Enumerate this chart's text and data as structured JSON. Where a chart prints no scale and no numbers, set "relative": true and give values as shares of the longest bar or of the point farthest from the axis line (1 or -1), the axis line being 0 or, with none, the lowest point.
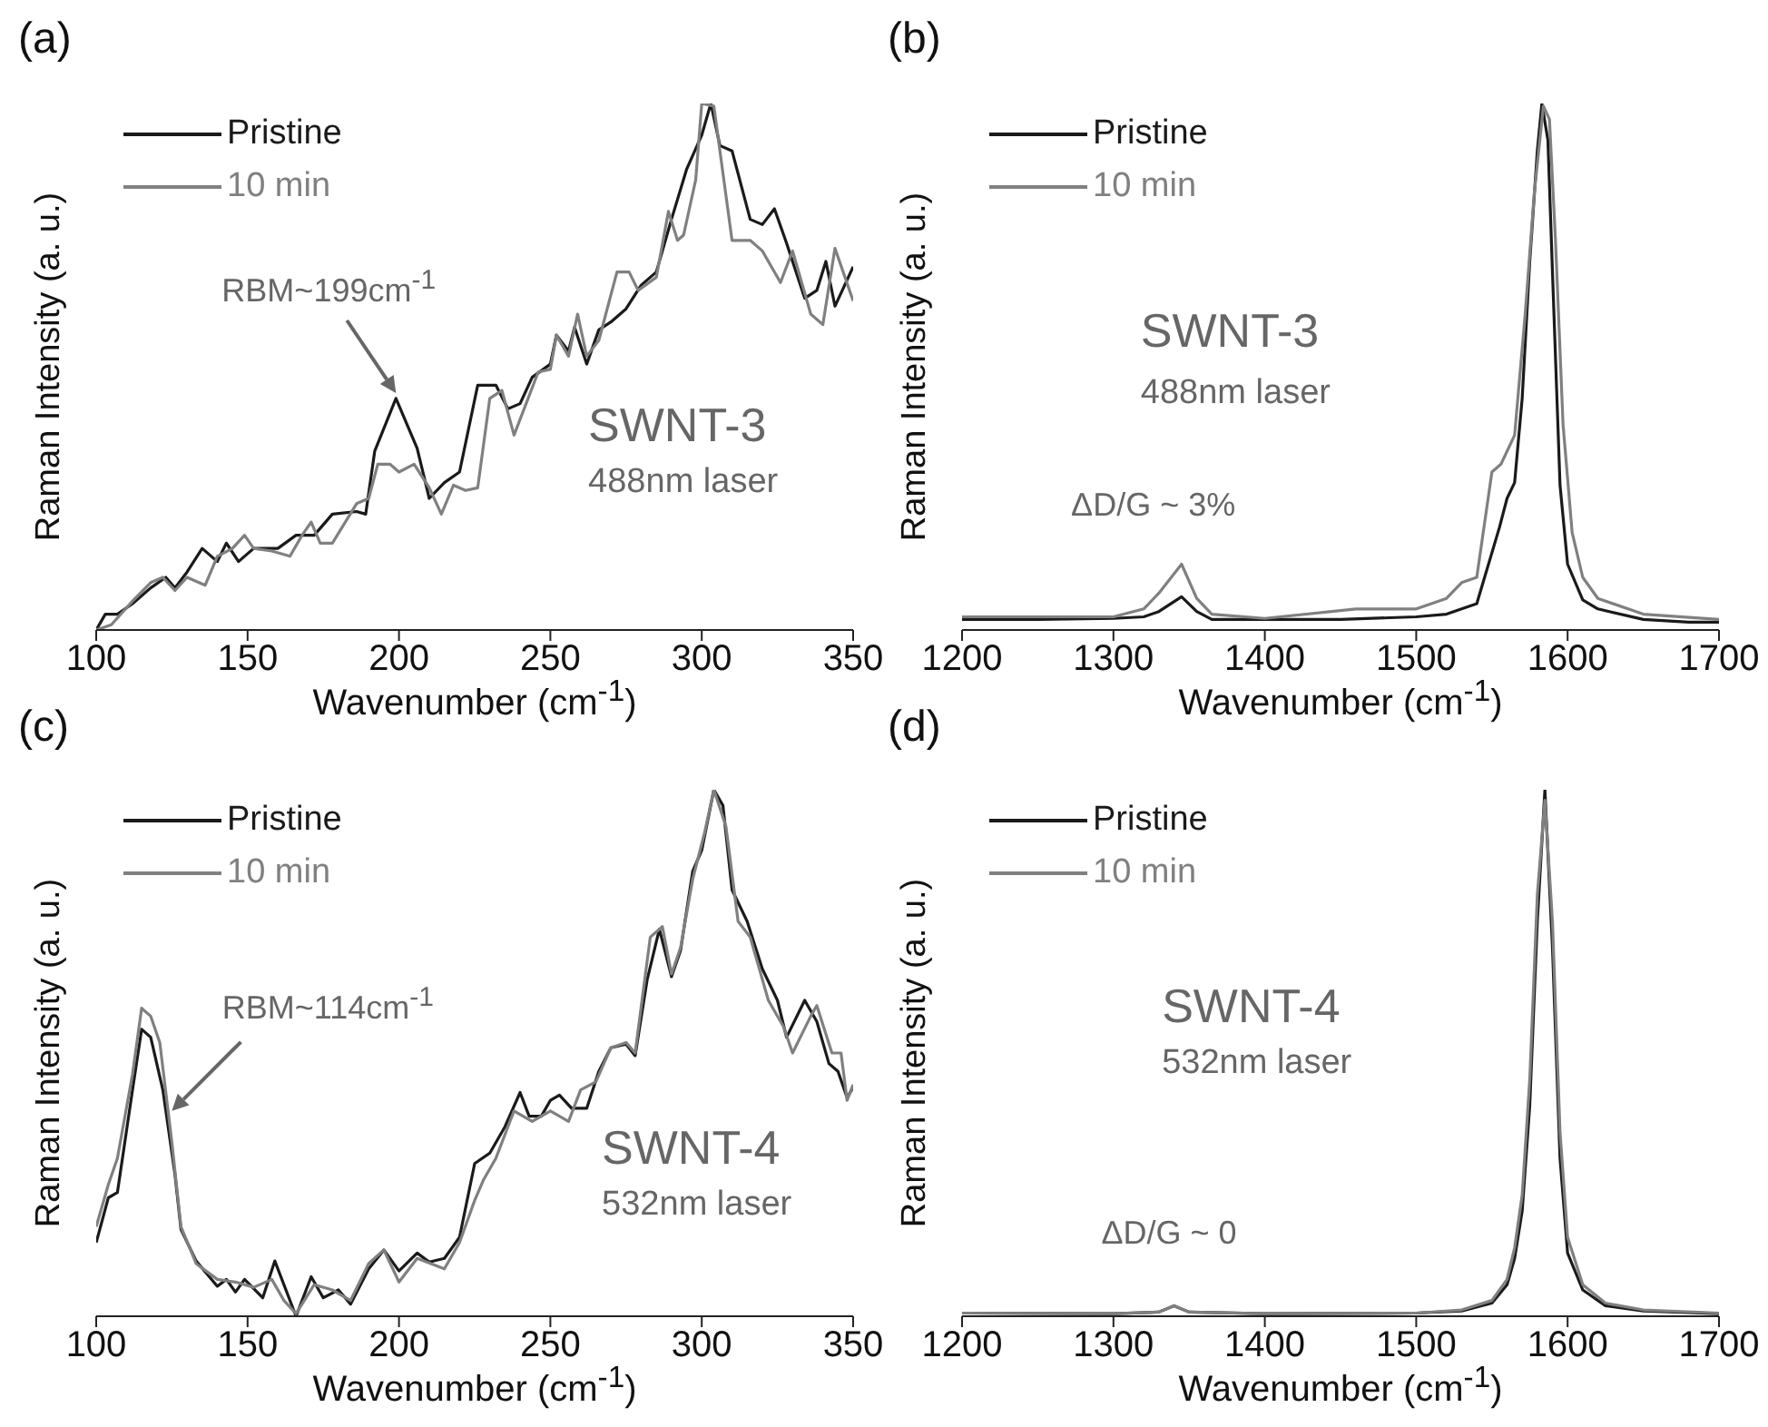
{
  "chart_data": [
    {
      "type": "line",
      "title": "(a)",
      "xlabel": "Wavenumber (cm$^{-1}$)",
      "ylabel": "Raman Intensity (a. u.)",
      "relative": true,
      "legend": "top left",
      "xlim": [
        100,
        350
      ],
      "xticks": [
        100,
        150,
        200,
        250,
        300,
        350
      ],
      "annotations": [
        {
          "text": "RBM~199cm$^{-1}$",
          "x": 199,
          "y": 0.45
        },
        "SWNT-3",
        "488nm laser"
      ],
      "series": [
        {
          "name": "Pristine",
          "color": "#1a1a1a",
          "x": [
            100,
            103,
            107,
            112,
            118,
            123,
            126,
            130,
            135,
            140,
            143,
            147,
            152,
            160,
            166,
            172,
            178,
            186,
            189,
            192,
            199,
            206,
            210,
            215,
            220,
            226,
            232,
            236,
            240,
            244,
            250,
            252,
            256,
            258,
            262,
            266,
            270,
            275,
            280,
            285,
            290,
            295,
            300,
            303,
            306,
            310,
            316,
            320,
            324,
            328,
            334,
            338,
            341,
            344,
            350
          ],
          "values": [
            0,
            0.03,
            0.03,
            0.05,
            0.08,
            0.1,
            0.08,
            0.11,
            0.155,
            0.13,
            0.165,
            0.13,
            0.155,
            0.155,
            0.18,
            0.18,
            0.22,
            0.225,
            0.22,
            0.34,
            0.44,
            0.345,
            0.25,
            0.28,
            0.3,
            0.465,
            0.465,
            0.42,
            0.43,
            0.48,
            0.505,
            0.56,
            0.53,
            0.575,
            0.505,
            0.57,
            0.585,
            0.61,
            0.655,
            0.68,
            0.78,
            0.875,
            0.94,
            1.0,
            0.92,
            0.91,
            0.78,
            0.77,
            0.8,
            0.735,
            0.63,
            0.645,
            0.7,
            0.615,
            0.69
          ]
        },
        {
          "name": "10 min",
          "color": "#808080",
          "x": [
            100,
            105,
            112,
            118,
            122,
            126,
            130,
            136,
            140,
            145,
            149,
            152,
            158,
            164,
            168,
            171,
            174,
            178,
            186,
            190,
            193,
            197,
            200,
            205,
            210,
            214,
            218,
            222,
            226,
            230,
            234,
            238,
            246,
            250,
            252,
            256,
            259,
            262,
            266,
            272,
            276,
            279,
            285,
            289,
            292,
            294,
            298,
            300,
            304,
            310,
            316,
            320,
            326,
            330,
            336,
            340,
            344,
            350
          ],
          "values": [
            0,
            0.01,
            0.055,
            0.09,
            0.1,
            0.075,
            0.1,
            0.085,
            0.14,
            0.155,
            0.18,
            0.155,
            0.15,
            0.14,
            0.18,
            0.205,
            0.165,
            0.165,
            0.24,
            0.25,
            0.315,
            0.315,
            0.3,
            0.315,
            0.27,
            0.22,
            0.275,
            0.265,
            0.27,
            0.44,
            0.455,
            0.37,
            0.49,
            0.495,
            0.56,
            0.52,
            0.6,
            0.52,
            0.55,
            0.68,
            0.68,
            0.645,
            0.67,
            0.795,
            0.74,
            0.75,
            0.855,
            1.0,
            0.995,
            0.74,
            0.74,
            0.72,
            0.66,
            0.72,
            0.6,
            0.58,
            0.725,
            0.625
          ]
        }
      ]
    },
    {
      "type": "line",
      "title": "(b)",
      "xlabel": "Wavenumber (cm$^{-1}$)",
      "ylabel": "Raman Intensity (a. u.)",
      "relative": true,
      "legend": "top left",
      "xlim": [
        1200,
        1700
      ],
      "xticks": [
        1200,
        1300,
        1400,
        1500,
        1600,
        1700
      ],
      "annotations": [
        "SWNT-3",
        "488nm laser",
        "ΔD/G ~ 3%"
      ],
      "series": [
        {
          "name": "Pristine",
          "color": "#1a1a1a",
          "x": [
            1200,
            1250,
            1300,
            1320,
            1330,
            1345,
            1355,
            1365,
            1400,
            1450,
            1500,
            1520,
            1530,
            1540,
            1555,
            1560,
            1565,
            1570,
            1575,
            1580,
            1583,
            1587,
            1590,
            1595,
            1600,
            1610,
            1620,
            1650,
            1680,
            1700
          ],
          "values": [
            0.02,
            0.02,
            0.022,
            0.025,
            0.035,
            0.063,
            0.035,
            0.02,
            0.02,
            0.02,
            0.025,
            0.03,
            0.04,
            0.05,
            0.195,
            0.25,
            0.28,
            0.44,
            0.7,
            0.91,
            1.0,
            0.93,
            0.68,
            0.275,
            0.125,
            0.057,
            0.04,
            0.02,
            0.015,
            0.015
          ]
        },
        {
          "name": "10 min",
          "color": "#808080",
          "x": [
            1200,
            1250,
            1300,
            1320,
            1330,
            1345,
            1355,
            1365,
            1400,
            1460,
            1500,
            1520,
            1530,
            1540,
            1550,
            1556,
            1565,
            1572,
            1578,
            1584,
            1588,
            1592,
            1597,
            1603,
            1610,
            1620,
            1650,
            1700
          ],
          "values": [
            0.025,
            0.025,
            0.025,
            0.04,
            0.07,
            0.125,
            0.06,
            0.03,
            0.022,
            0.04,
            0.04,
            0.06,
            0.09,
            0.1,
            0.3,
            0.315,
            0.37,
            0.6,
            0.83,
            0.995,
            0.97,
            0.74,
            0.39,
            0.185,
            0.1,
            0.06,
            0.03,
            0.02
          ]
        }
      ]
    },
    {
      "type": "line",
      "title": "(c)",
      "xlabel": "Wavenumber (cm$^{-1}$)",
      "ylabel": "Raman Intensity (a. u.)",
      "relative": true,
      "legend": "top left",
      "xlim": [
        100,
        350
      ],
      "xticks": [
        100,
        150,
        200,
        250,
        300,
        350
      ],
      "annotations": [
        {
          "text": "RBM~114cm$^{-1}$",
          "x": 125,
          "y": 0.39
        },
        "SWNT-4",
        "532nm laser"
      ],
      "series": [
        {
          "name": "Pristine",
          "color": "#1a1a1a",
          "x": [
            100,
            104,
            107,
            112,
            115,
            118,
            122,
            126,
            128,
            133,
            140,
            143,
            146,
            149,
            155,
            159,
            166,
            171,
            175,
            180,
            184,
            190,
            195,
            200,
            206,
            210,
            215,
            220,
            225,
            230,
            235,
            240,
            243,
            247,
            250,
            253,
            257,
            262,
            266,
            270,
            275,
            278,
            282,
            286,
            290,
            293,
            297,
            300,
            304,
            307,
            310,
            315,
            320,
            325,
            328,
            334,
            338,
            342,
            345,
            348,
            350
          ],
          "values": [
            0.14,
            0.225,
            0.235,
            0.43,
            0.545,
            0.53,
            0.43,
            0.27,
            0.165,
            0.105,
            0.057,
            0.07,
            0.046,
            0.07,
            0.035,
            0.105,
            0.0,
            0.075,
            0.035,
            0.05,
            0.023,
            0.09,
            0.126,
            0.086,
            0.12,
            0.103,
            0.11,
            0.15,
            0.29,
            0.31,
            0.36,
            0.425,
            0.38,
            0.38,
            0.41,
            0.42,
            0.395,
            0.395,
            0.465,
            0.51,
            0.517,
            0.495,
            0.64,
            0.735,
            0.645,
            0.695,
            0.845,
            0.885,
            1.0,
            0.97,
            0.81,
            0.75,
            0.66,
            0.6,
            0.53,
            0.6,
            0.56,
            0.48,
            0.465,
            0.415,
            0.435
          ]
        },
        {
          "name": "10 min",
          "color": "#808080",
          "x": [
            100,
            104,
            107,
            112,
            115,
            118,
            121,
            125,
            128,
            133,
            140,
            146,
            152,
            158,
            162,
            166,
            172,
            178,
            184,
            190,
            195,
            200,
            206,
            215,
            220,
            225,
            228,
            232,
            238,
            244,
            250,
            256,
            260,
            265,
            270,
            275,
            278,
            283,
            287,
            290,
            293,
            297,
            301,
            304,
            308,
            312,
            316,
            322,
            327,
            330,
            336,
            338,
            343,
            346,
            348,
            350
          ],
          "values": [
            0.17,
            0.25,
            0.3,
            0.46,
            0.585,
            0.57,
            0.52,
            0.33,
            0.17,
            0.1,
            0.07,
            0.065,
            0.055,
            0.07,
            0.03,
            0.005,
            0.06,
            0.05,
            0.03,
            0.1,
            0.126,
            0.065,
            0.11,
            0.09,
            0.14,
            0.22,
            0.26,
            0.3,
            0.39,
            0.37,
            0.39,
            0.37,
            0.43,
            0.445,
            0.51,
            0.52,
            0.5,
            0.72,
            0.74,
            0.65,
            0.7,
            0.83,
            0.92,
            1.0,
            0.93,
            0.75,
            0.72,
            0.6,
            0.55,
            0.5,
            0.57,
            0.59,
            0.5,
            0.5,
            0.41,
            0.44
          ]
        }
      ]
    },
    {
      "type": "line",
      "title": "(d)",
      "xlabel": "Wavenumber (cm$^{-1}$)",
      "ylabel": "Raman Intensity (a. u.)",
      "relative": true,
      "legend": "top left",
      "xlim": [
        1200,
        1700
      ],
      "xticks": [
        1200,
        1300,
        1400,
        1500,
        1600,
        1700
      ],
      "annotations": [
        "SWNT-4",
        "532nm laser",
        "ΔD/G ~ 0"
      ],
      "series": [
        {
          "name": "Pristine",
          "color": "#1a1a1a",
          "x": [
            1200,
            1300,
            1330,
            1340,
            1350,
            1400,
            1500,
            1530,
            1550,
            1560,
            1565,
            1570,
            1575,
            1580,
            1585,
            1590,
            1595,
            1600,
            1610,
            1625,
            1650,
            1700
          ],
          "values": [
            0.006,
            0.005,
            0.008,
            0.02,
            0.008,
            0.005,
            0.006,
            0.01,
            0.025,
            0.06,
            0.11,
            0.2,
            0.4,
            0.75,
            1.0,
            0.7,
            0.3,
            0.12,
            0.05,
            0.02,
            0.01,
            0.005
          ]
        },
        {
          "name": "10 min",
          "color": "#808080",
          "x": [
            1200,
            1300,
            1330,
            1340,
            1350,
            1400,
            1500,
            1530,
            1550,
            1560,
            1565,
            1570,
            1575,
            1580,
            1585,
            1590,
            1595,
            1600,
            1610,
            1625,
            1650,
            1700
          ],
          "values": [
            0.006,
            0.005,
            0.008,
            0.02,
            0.008,
            0.005,
            0.006,
            0.012,
            0.03,
            0.07,
            0.13,
            0.23,
            0.45,
            0.8,
            0.98,
            0.75,
            0.35,
            0.15,
            0.06,
            0.025,
            0.012,
            0.006
          ]
        }
      ]
    }
  ]
}
